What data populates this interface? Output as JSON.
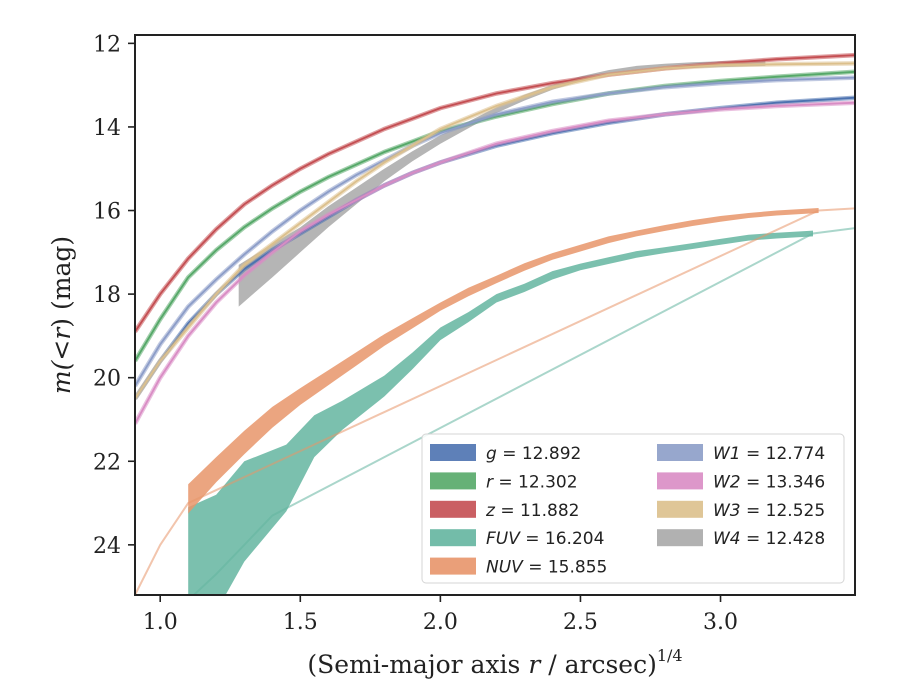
{
  "chart_data": {
    "type": "line",
    "xlabel": "(Semi-major axis r / arcsec)^1/4",
    "xlabel_parts": {
      "prefix": "(Semi-major axis ",
      "var": "r",
      "middle": " / arcsec)",
      "sup": "1/4"
    },
    "ylabel": "m(<r) (mag)",
    "ylabel_parts": {
      "prefix": "m(",
      "var": "<r",
      "suffix": ") (mag)"
    },
    "xlim": [
      0.91,
      3.48
    ],
    "ylim": [
      25.2,
      11.8
    ],
    "y_inverted": true,
    "xticks": [
      1.0,
      1.5,
      2.0,
      2.5,
      3.0
    ],
    "xtick_labels": [
      "1.0",
      "1.5",
      "2.0",
      "2.5",
      "3.0"
    ],
    "yticks": [
      12,
      14,
      16,
      18,
      20,
      22,
      24
    ],
    "ytick_labels": [
      "12",
      "14",
      "16",
      "18",
      "20",
      "22",
      "24"
    ],
    "grid": false,
    "legend_position": "lower-right",
    "series": [
      {
        "name": "g",
        "value": "12.892",
        "color": "#4c72b0",
        "x": [
          0.91,
          1.0,
          1.1,
          1.2,
          1.3,
          1.4,
          1.5,
          1.6,
          1.7,
          1.8,
          1.9,
          2.0,
          2.2,
          2.4,
          2.6,
          2.8,
          3.0,
          3.2,
          3.48
        ],
        "y": [
          20.5,
          19.6,
          18.7,
          18.0,
          17.4,
          16.95,
          16.55,
          16.15,
          15.75,
          15.4,
          15.1,
          14.85,
          14.45,
          14.15,
          13.9,
          13.7,
          13.55,
          13.42,
          13.3
        ]
      },
      {
        "name": "r",
        "value": "12.302",
        "color": "#55a868",
        "x": [
          0.91,
          1.0,
          1.1,
          1.2,
          1.3,
          1.4,
          1.5,
          1.6,
          1.7,
          1.8,
          1.9,
          2.0,
          2.2,
          2.4,
          2.6,
          2.8,
          3.0,
          3.2,
          3.48
        ],
        "y": [
          19.6,
          18.6,
          17.6,
          16.95,
          16.4,
          15.95,
          15.55,
          15.2,
          14.9,
          14.6,
          14.35,
          14.1,
          13.75,
          13.45,
          13.2,
          13.02,
          12.9,
          12.8,
          12.68
        ]
      },
      {
        "name": "z",
        "value": "11.882",
        "color": "#c44e52",
        "x": [
          0.91,
          1.0,
          1.1,
          1.2,
          1.3,
          1.4,
          1.5,
          1.6,
          1.7,
          1.8,
          1.9,
          2.0,
          2.2,
          2.4,
          2.6,
          2.8,
          3.0,
          3.2,
          3.48
        ],
        "y": [
          18.9,
          18.0,
          17.15,
          16.45,
          15.85,
          15.4,
          15.0,
          14.65,
          14.35,
          14.05,
          13.8,
          13.55,
          13.2,
          12.95,
          12.75,
          12.6,
          12.48,
          12.38,
          12.28
        ]
      },
      {
        "name": "FUV",
        "value": "16.204",
        "color": "#64b5a0",
        "x": [
          1.1,
          1.2,
          1.3,
          1.45,
          1.55,
          1.65,
          1.8,
          1.9,
          2.0,
          2.1,
          2.2,
          2.3,
          2.4,
          2.5,
          2.6,
          2.7,
          2.8,
          2.9,
          3.0,
          3.1,
          3.2,
          3.33
        ],
        "y": [
          24.7,
          24.2,
          23.2,
          22.4,
          21.4,
          20.9,
          20.2,
          19.6,
          18.95,
          18.55,
          18.1,
          17.85,
          17.55,
          17.35,
          17.2,
          17.05,
          16.95,
          16.85,
          16.75,
          16.65,
          16.6,
          16.55
        ],
        "half_width": [
          1.6,
          1.4,
          1.2,
          0.8,
          0.5,
          0.35,
          0.25,
          0.2,
          0.15,
          0.12,
          0.1,
          0.1,
          0.1,
          0.08,
          0.08,
          0.08,
          0.07,
          0.07,
          0.07,
          0.07,
          0.07,
          0.07
        ],
        "ext_x": [
          1.12,
          1.2,
          1.3,
          1.4,
          3.33,
          3.48
        ],
        "ext_y": [
          25.2,
          24.7,
          24.0,
          23.3,
          16.55,
          16.42
        ]
      },
      {
        "name": "NUV",
        "value": "15.855",
        "color": "#e8956a",
        "x": [
          1.1,
          1.2,
          1.3,
          1.4,
          1.5,
          1.6,
          1.7,
          1.8,
          1.9,
          2.0,
          2.1,
          2.2,
          2.3,
          2.4,
          2.5,
          2.6,
          2.7,
          2.8,
          2.9,
          3.0,
          3.1,
          3.2,
          3.35
        ],
        "y": [
          22.9,
          22.2,
          21.55,
          20.95,
          20.45,
          20.0,
          19.55,
          19.1,
          18.7,
          18.3,
          17.95,
          17.65,
          17.35,
          17.1,
          16.9,
          16.7,
          16.55,
          16.42,
          16.3,
          16.2,
          16.12,
          16.06,
          16.0
        ],
        "half_width": [
          0.35,
          0.3,
          0.28,
          0.25,
          0.2,
          0.18,
          0.16,
          0.14,
          0.12,
          0.1,
          0.1,
          0.09,
          0.09,
          0.08,
          0.08,
          0.08,
          0.07,
          0.07,
          0.07,
          0.07,
          0.06,
          0.06,
          0.06
        ],
        "ext_x": [
          0.91,
          1.0,
          1.1,
          3.35,
          3.48
        ],
        "ext_y": [
          25.2,
          24.0,
          23.0,
          16.0,
          15.95
        ]
      },
      {
        "name": "W1",
        "value": "12.774",
        "color": "#8c9dc8",
        "x": [
          0.91,
          1.0,
          1.1,
          1.2,
          1.3,
          1.4,
          1.5,
          1.6,
          1.7,
          1.8,
          1.9,
          2.0,
          2.2,
          2.4,
          2.6,
          2.8,
          3.0,
          3.2,
          3.48
        ],
        "y": [
          20.2,
          19.2,
          18.3,
          17.65,
          17.05,
          16.5,
          16.0,
          15.55,
          15.15,
          14.8,
          14.45,
          14.15,
          13.7,
          13.4,
          13.2,
          13.05,
          12.95,
          12.88,
          12.82
        ]
      },
      {
        "name": "W2",
        "value": "13.346",
        "color": "#d98cc4",
        "x": [
          0.91,
          1.0,
          1.1,
          1.2,
          1.3,
          1.4,
          1.5,
          1.6,
          1.7,
          1.8,
          1.9,
          2.0,
          2.2,
          2.4,
          2.6,
          2.8,
          3.0,
          3.2,
          3.48
        ],
        "y": [
          21.1,
          20.0,
          19.0,
          18.2,
          17.55,
          17.0,
          16.5,
          16.1,
          15.75,
          15.4,
          15.1,
          14.85,
          14.4,
          14.1,
          13.85,
          13.7,
          13.58,
          13.5,
          13.42
        ]
      },
      {
        "name": "W3",
        "value": "12.525",
        "color": "#dcc08c",
        "x": [
          0.91,
          1.0,
          1.1,
          1.2,
          1.3,
          1.4,
          1.5,
          1.6,
          1.7,
          1.8,
          1.9,
          2.0,
          2.2,
          2.4,
          2.6,
          2.8,
          3.0,
          3.2,
          3.48
        ],
        "y": [
          20.5,
          19.6,
          18.8,
          18.0,
          17.3,
          16.8,
          16.3,
          15.8,
          15.3,
          14.85,
          14.45,
          14.05,
          13.5,
          13.05,
          12.75,
          12.6,
          12.52,
          12.5,
          12.48
        ]
      },
      {
        "name": "W4",
        "value": "12.428",
        "color": "#a8a8a8",
        "x": [
          1.28,
          1.4,
          1.5,
          1.6,
          1.7,
          1.8,
          1.9,
          2.0,
          2.1,
          2.2,
          2.3,
          2.4,
          2.5,
          2.6,
          2.7,
          2.8,
          2.9,
          3.0,
          3.1,
          3.16
        ],
        "y": [
          17.8,
          17.2,
          16.7,
          16.15,
          15.65,
          15.15,
          14.7,
          14.3,
          13.95,
          13.6,
          13.3,
          13.05,
          12.85,
          12.7,
          12.6,
          12.55,
          12.52,
          12.5,
          12.48,
          12.47
        ],
        "half_width": [
          0.5,
          0.4,
          0.3,
          0.25,
          0.2,
          0.15,
          0.12,
          0.1,
          0.08,
          0.07,
          0.07,
          0.06,
          0.06,
          0.06,
          0.06,
          0.06,
          0.07,
          0.07,
          0.07,
          0.07
        ]
      }
    ]
  }
}
